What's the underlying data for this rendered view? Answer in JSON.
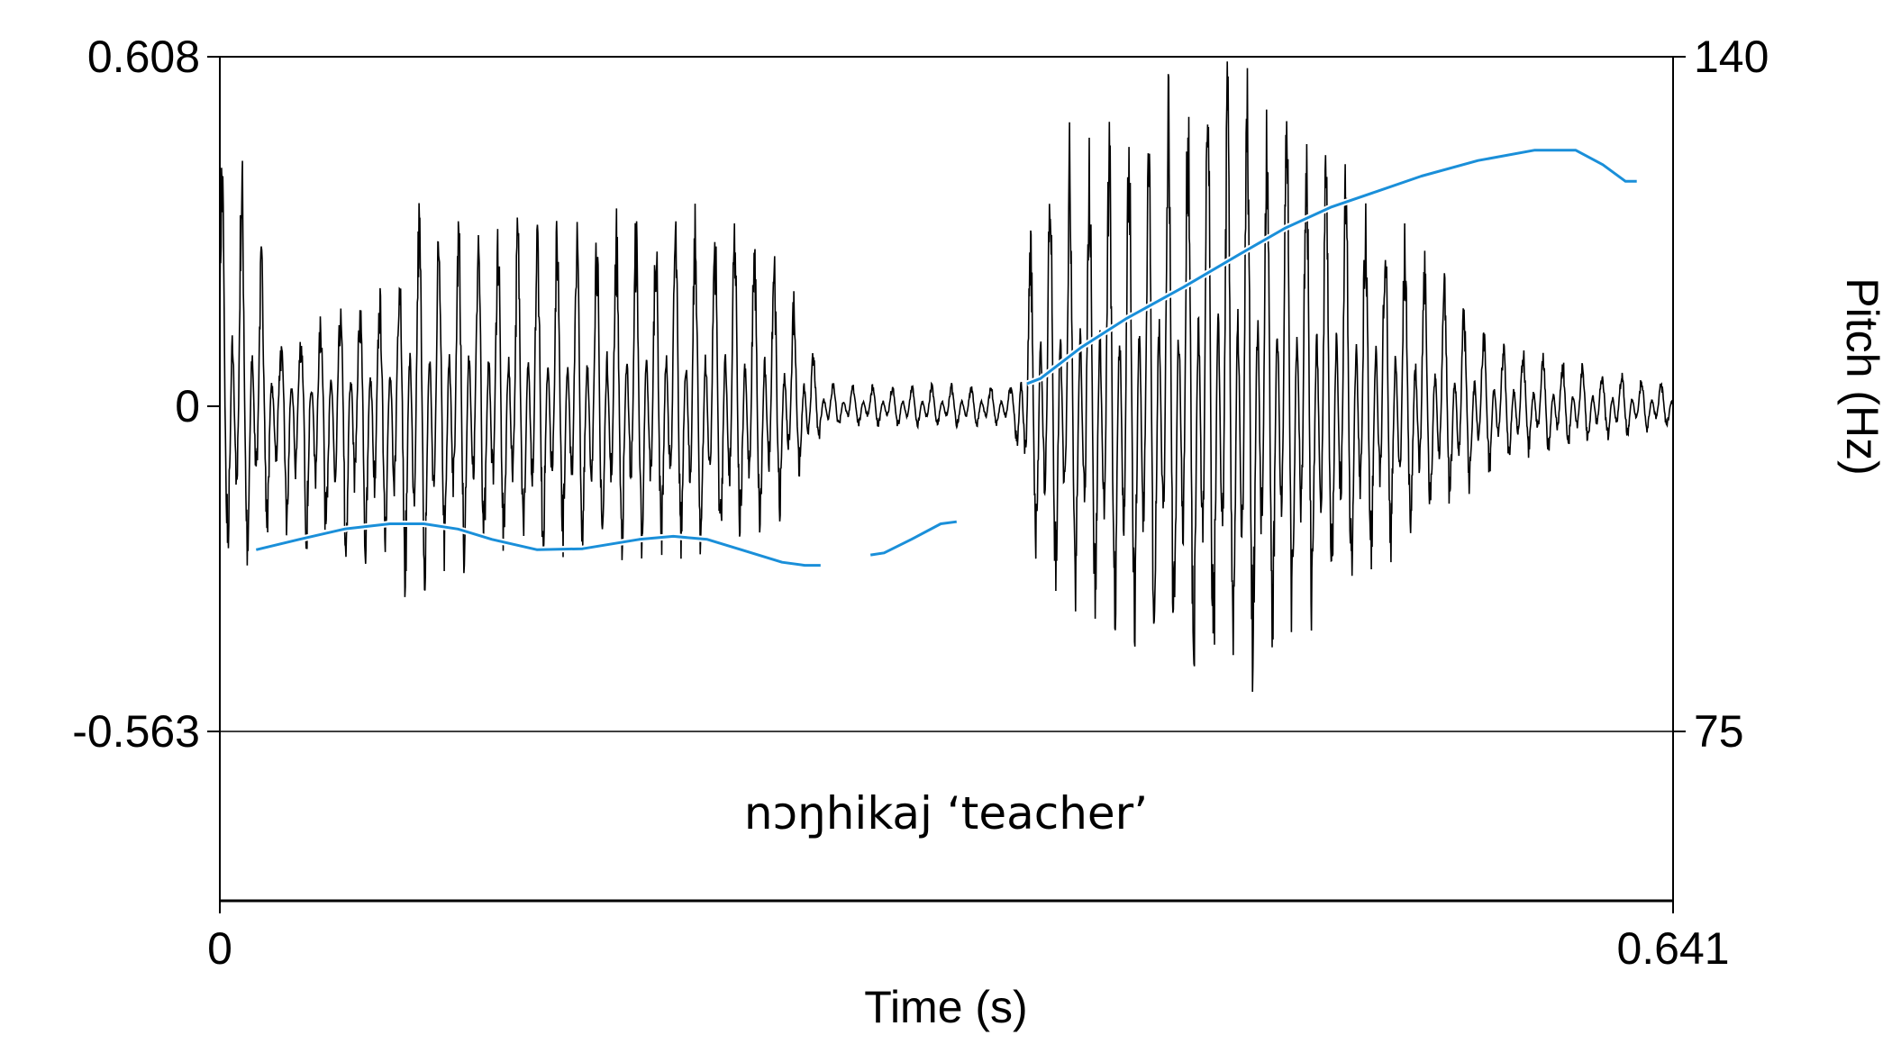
{
  "chart_data": {
    "type": "line",
    "xlabel": "Time (s)",
    "ylabel_right": "Pitch (Hz)",
    "xlim": [
      0,
      0.641
    ],
    "x_tick_labels": [
      "0",
      "0.641"
    ],
    "waveform_ylim": [
      -0.563,
      0.608
    ],
    "waveform_tick_labels": [
      "0.608",
      "0",
      "-0.563"
    ],
    "pitch_ylim": [
      75,
      140
    ],
    "pitch_tick_labels": [
      "140",
      "75"
    ],
    "annotation": "nɔŋhikaj ‘teacher’",
    "grid": false,
    "series": [
      {
        "kind": "waveform",
        "color": "#000000",
        "envelope": {
          "t": [
            0.0,
            0.012,
            0.025,
            0.045,
            0.06,
            0.075,
            0.085,
            0.1,
            0.125,
            0.15,
            0.175,
            0.2,
            0.225,
            0.245,
            0.255,
            0.265,
            0.275,
            0.285,
            0.3,
            0.32,
            0.34,
            0.35,
            0.36,
            0.375,
            0.39,
            0.405,
            0.43,
            0.455,
            0.475,
            0.49,
            0.505,
            0.525,
            0.545,
            0.565,
            0.58,
            0.6,
            0.62,
            0.641
          ],
          "upper": [
            0.47,
            0.45,
            0.1,
            0.16,
            0.19,
            0.21,
            0.37,
            0.34,
            0.34,
            0.34,
            0.34,
            0.34,
            0.34,
            0.3,
            0.18,
            0.06,
            0.04,
            0.04,
            0.04,
            0.04,
            0.04,
            0.04,
            0.42,
            0.48,
            0.5,
            0.54,
            0.58,
            0.6,
            0.58,
            0.48,
            0.4,
            0.3,
            0.2,
            0.12,
            0.1,
            0.08,
            0.06,
            0.04
          ],
          "lower": [
            -0.3,
            -0.32,
            -0.25,
            -0.31,
            -0.34,
            -0.35,
            -0.4,
            -0.34,
            -0.3,
            -0.3,
            -0.3,
            -0.3,
            -0.3,
            -0.24,
            -0.14,
            -0.06,
            -0.04,
            -0.04,
            -0.04,
            -0.04,
            -0.04,
            -0.04,
            -0.34,
            -0.4,
            -0.45,
            -0.5,
            -0.56,
            -0.56,
            -0.48,
            -0.4,
            -0.34,
            -0.28,
            -0.2,
            -0.12,
            -0.1,
            -0.08,
            -0.06,
            -0.04
          ]
        }
      },
      {
        "kind": "pitch",
        "color": "#1a8fd9",
        "segments": [
          {
            "t": [
              0.016,
              0.035,
              0.055,
              0.075,
              0.09,
              0.105,
              0.12,
              0.14,
              0.16,
              0.185,
              0.2,
              0.215,
              0.23,
              0.248,
              0.258,
              0.265
            ],
            "hz": [
              92.5,
              93.5,
              94.5,
              95.0,
              95.0,
              94.5,
              93.5,
              92.5,
              92.6,
              93.5,
              93.8,
              93.5,
              92.5,
              91.3,
              91.0,
              91.0
            ]
          },
          {
            "t": [
              0.287,
              0.293,
              0.305,
              0.318,
              0.325
            ],
            "hz": [
              92.0,
              92.2,
              93.5,
              95.0,
              95.2
            ]
          },
          {
            "t": [
              0.356,
              0.362,
              0.38,
              0.4,
              0.425,
              0.45,
              0.47,
              0.49,
              0.51,
              0.53,
              0.555,
              0.58,
              0.598,
              0.61,
              0.62,
              0.625
            ],
            "hz": [
              108.5,
              109.0,
              112.0,
              114.8,
              117.8,
              121.0,
              123.5,
              125.5,
              127.0,
              128.5,
              130.0,
              131.0,
              131.0,
              129.6,
              128.0,
              128.0
            ]
          }
        ]
      }
    ]
  }
}
